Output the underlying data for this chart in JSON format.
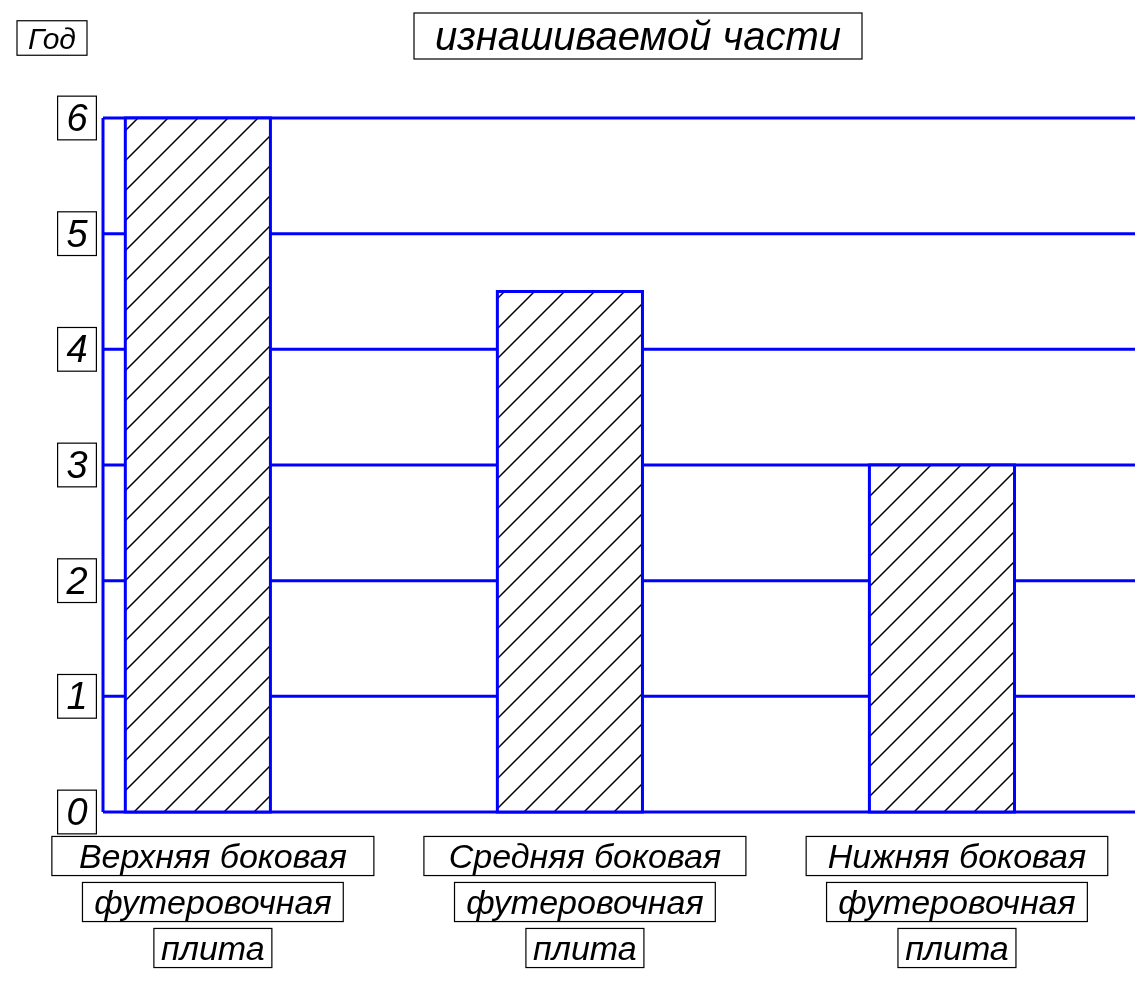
{
  "chart_data": {
    "type": "bar",
    "title": "изнашиваемой части",
    "ylabel": "Год",
    "categories": [
      "Верхняя боковая футеровочная плита",
      "Средняя боковая футеровочная плита",
      "Нижняя боковая футеровочная плита"
    ],
    "values": [
      6,
      4.5,
      3
    ],
    "color": "#0000ff",
    "ylim": [
      0,
      6
    ],
    "yticks": [
      0,
      1,
      2,
      3,
      4,
      5,
      6
    ],
    "grid": "y"
  }
}
